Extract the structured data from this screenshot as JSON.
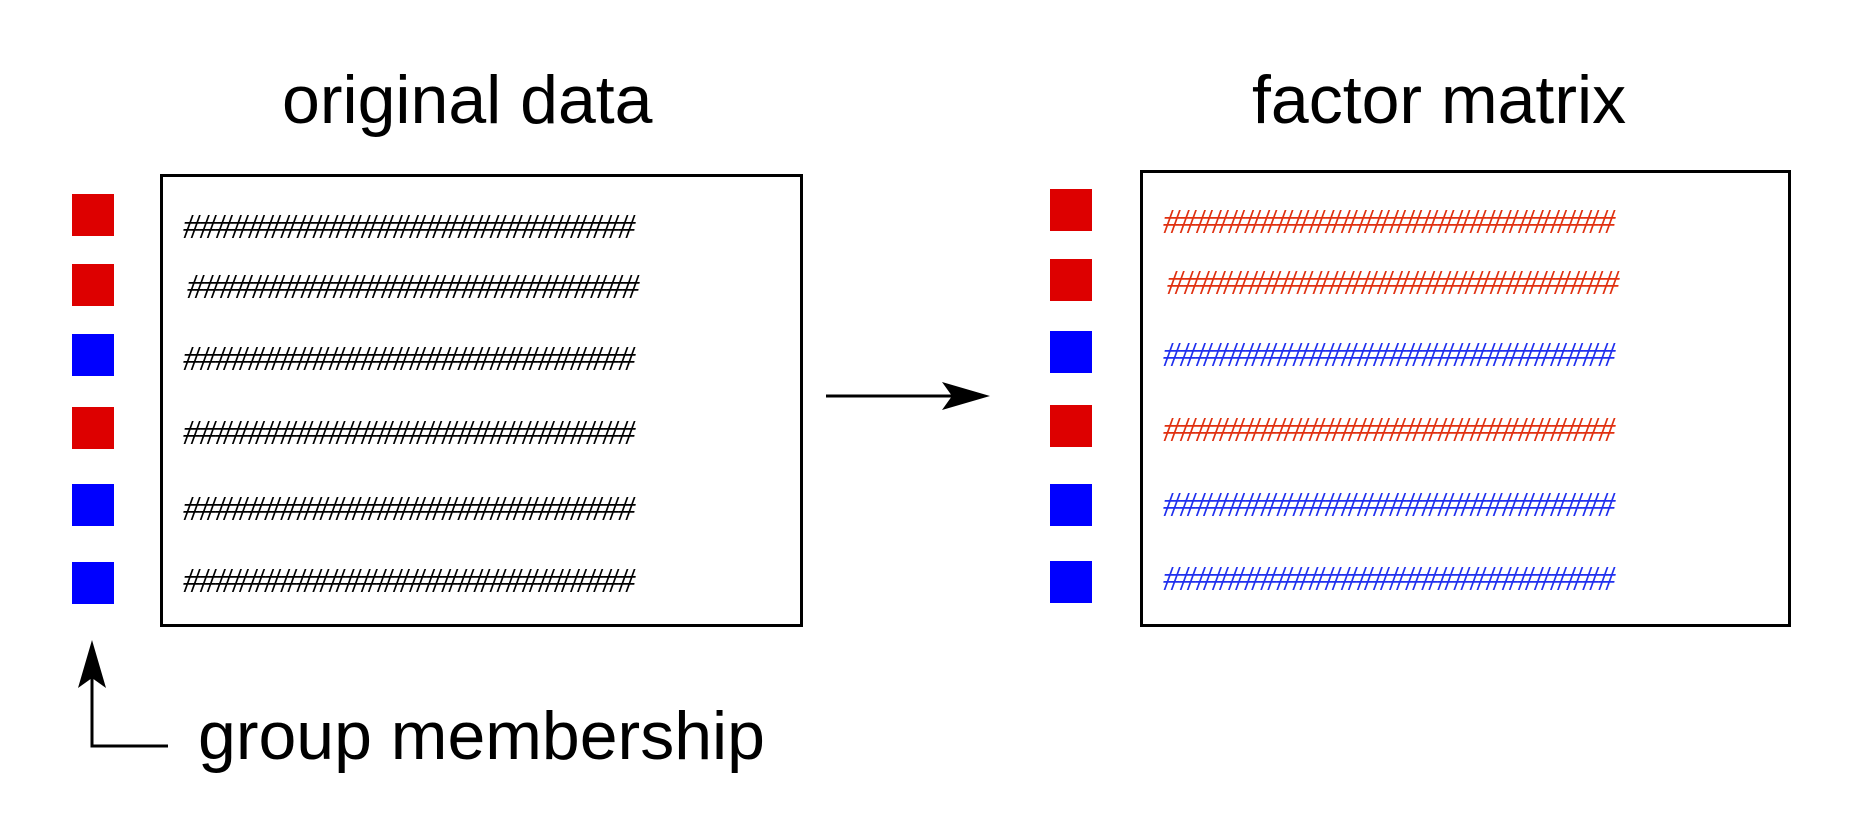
{
  "colors": {
    "red": "#dd0000",
    "blue": "#0000ff",
    "red_text": "#e03010",
    "blue_text": "#2030ee",
    "ink": "#000000"
  },
  "left_panel": {
    "title": "original data",
    "rows": [
      {
        "text": "############################",
        "group": "red"
      },
      {
        "text": "############################",
        "group": "red"
      },
      {
        "text": "############################",
        "group": "blue"
      },
      {
        "text": "############################",
        "group": "red"
      },
      {
        "text": "############################",
        "group": "blue"
      },
      {
        "text": "############################",
        "group": "blue"
      }
    ]
  },
  "right_panel": {
    "title": "factor matrix",
    "rows": [
      {
        "text": "############################",
        "group": "red"
      },
      {
        "text": "############################",
        "group": "red"
      },
      {
        "text": "############################",
        "group": "blue"
      },
      {
        "text": "############################",
        "group": "red"
      },
      {
        "text": "############################",
        "group": "blue"
      },
      {
        "text": "############################",
        "group": "blue"
      }
    ]
  },
  "caption": "group membership",
  "icons": {
    "transform_arrow": "right-arrow-icon",
    "membership_arrow": "elbow-up-arrow-icon"
  }
}
